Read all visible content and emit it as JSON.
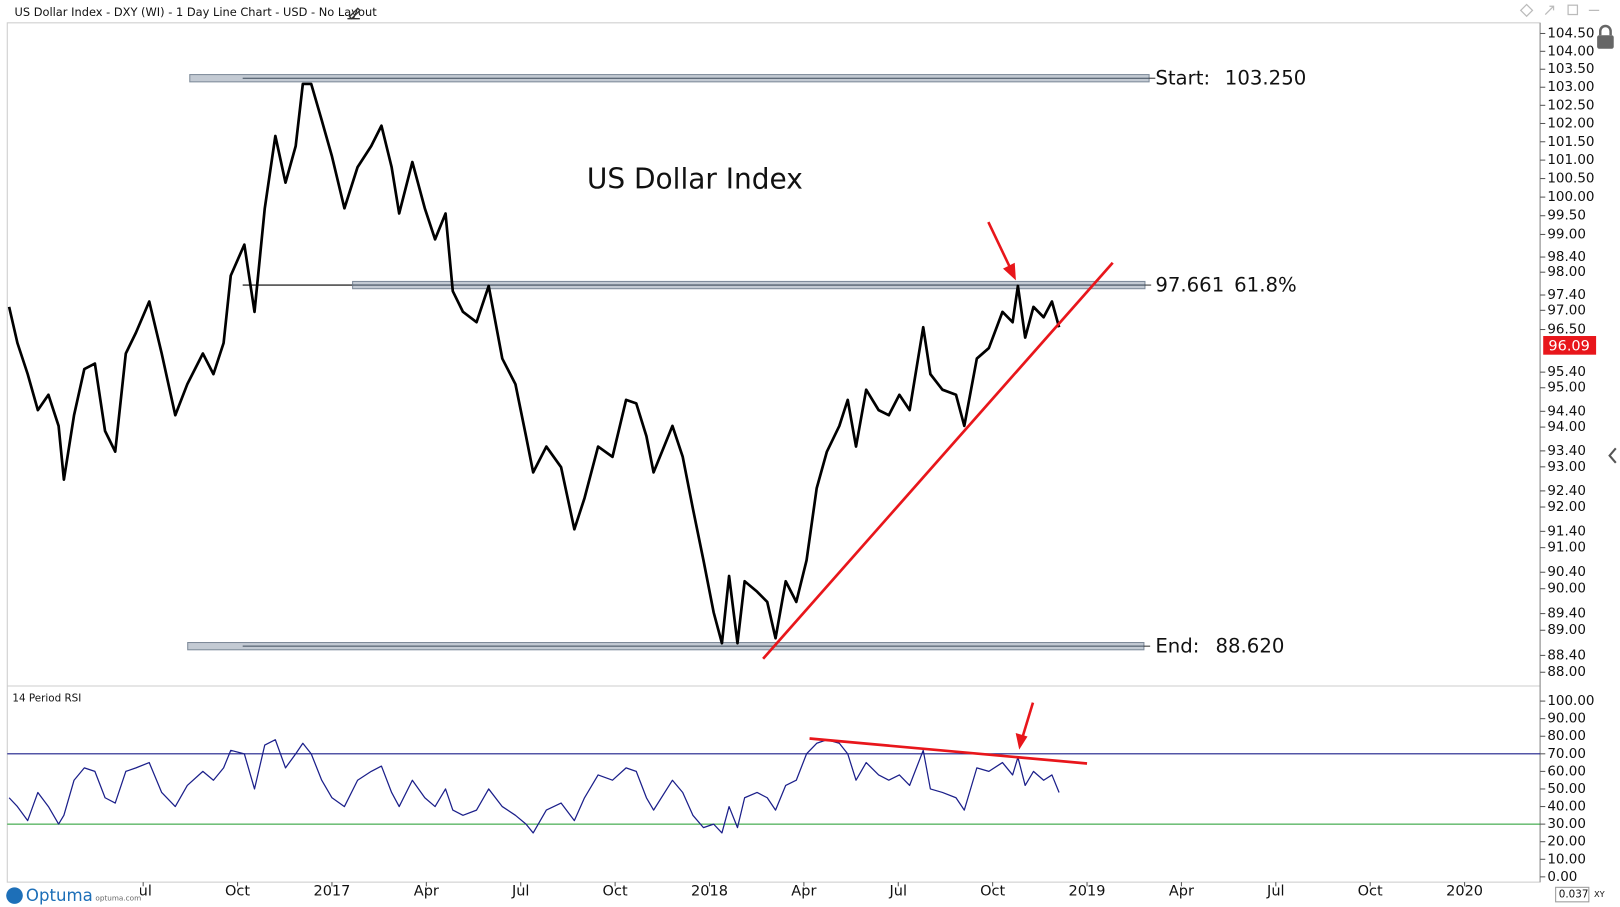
{
  "header": {
    "title": "US Dollar Index - DXY (WI) - 1 Day Line Chart - USD - No Layout"
  },
  "footer": {
    "logo": "Optuma",
    "site": "optuma.com",
    "zoom": "0.037",
    "mode": "XY"
  },
  "chart_data": [
    {
      "type": "line",
      "title": "US Dollar Index",
      "log": true,
      "xlim": [
        2016.14,
        2020.2
      ],
      "ylim": [
        87.7,
        104.8
      ],
      "yticks": [
        {
          "value": 88,
          "label": "88.00"
        },
        {
          "value": 88.4,
          "label": "88.40"
        },
        {
          "value": 89,
          "label": "89.00"
        },
        {
          "value": 89.4,
          "label": "89.40"
        },
        {
          "value": 90,
          "label": "90.00"
        },
        {
          "value": 90.4,
          "label": "90.40"
        },
        {
          "value": 91,
          "label": "91.00"
        },
        {
          "value": 91.4,
          "label": "91.40"
        },
        {
          "value": 92,
          "label": "92.00"
        },
        {
          "value": 92.4,
          "label": "92.40"
        },
        {
          "value": 93,
          "label": "93.00"
        },
        {
          "value": 93.4,
          "label": "93.40"
        },
        {
          "value": 94,
          "label": "94.00"
        },
        {
          "value": 94.4,
          "label": "94.40"
        },
        {
          "value": 95,
          "label": "95.00"
        },
        {
          "value": 95.4,
          "label": "95.40"
        },
        {
          "value": 96.5,
          "label": "96.50"
        },
        {
          "value": 97,
          "label": "97.00"
        },
        {
          "value": 97.4,
          "label": "97.40"
        },
        {
          "value": 98,
          "label": "98.00"
        },
        {
          "value": 98.4,
          "label": "98.40"
        },
        {
          "value": 99,
          "label": "99.00"
        },
        {
          "value": 99.5,
          "label": "99.50"
        },
        {
          "value": 100,
          "label": "100.00"
        },
        {
          "value": 100.5,
          "label": "100.50"
        },
        {
          "value": 101,
          "label": "101.00"
        },
        {
          "value": 101.5,
          "label": "101.50"
        },
        {
          "value": 102,
          "label": "102.00"
        },
        {
          "value": 102.5,
          "label": "102.50"
        },
        {
          "value": 103,
          "label": "103.00"
        },
        {
          "value": 103.5,
          "label": "103.50"
        },
        {
          "value": 104,
          "label": "104.00"
        },
        {
          "value": 104.5,
          "label": "104.50"
        }
      ],
      "x": [
        2016.145,
        2016.167,
        2016.194,
        2016.221,
        2016.249,
        2016.276,
        2016.29,
        2016.317,
        2016.344,
        2016.372,
        2016.399,
        2016.426,
        2016.454,
        2016.481,
        2016.516,
        2016.549,
        2016.585,
        2016.617,
        2016.658,
        2016.686,
        2016.713,
        2016.732,
        2016.768,
        2016.795,
        2016.822,
        2016.85,
        2016.877,
        2016.904,
        2016.923,
        2016.945,
        2016.973,
        2017.0,
        2017.033,
        2017.068,
        2017.104,
        2017.131,
        2017.158,
        2017.178,
        2017.213,
        2017.246,
        2017.273,
        2017.301,
        2017.32,
        2017.347,
        2017.383,
        2017.415,
        2017.451,
        2017.486,
        2017.514,
        2017.533,
        2017.568,
        2017.607,
        2017.642,
        2017.669,
        2017.705,
        2017.743,
        2017.779,
        2017.806,
        2017.833,
        2017.852,
        2017.902,
        2017.929,
        2017.956,
        2017.984,
        2018.011,
        2018.033,
        2018.052,
        2018.074,
        2018.093,
        2018.126,
        2018.153,
        2018.175,
        2018.202,
        2018.23,
        2018.257,
        2018.284,
        2018.311,
        2018.344,
        2018.366,
        2018.388,
        2018.415,
        2018.448,
        2018.475,
        2018.503,
        2018.53,
        2018.566,
        2018.585,
        2018.617,
        2018.653,
        2018.675,
        2018.708,
        2018.74,
        2018.776,
        2018.803,
        2018.817,
        2018.836,
        2018.858,
        2018.885,
        2018.907,
        2018.926
      ],
      "series": [
        {
          "name": "US Dollar Index",
          "color": "#000000",
          "values": [
            97.09,
            96.15,
            95.35,
            94.43,
            94.82,
            94.03,
            92.68,
            94.3,
            95.48,
            95.62,
            93.9,
            93.38,
            95.88,
            96.42,
            97.23,
            95.88,
            94.3,
            95.09,
            95.88,
            95.35,
            96.15,
            97.91,
            98.73,
            96.96,
            99.7,
            101.66,
            100.39,
            101.38,
            103.09,
            103.09,
            102.09,
            101.1,
            99.7,
            100.81,
            101.38,
            101.94,
            100.81,
            99.56,
            100.95,
            99.7,
            98.87,
            99.56,
            97.5,
            96.96,
            96.69,
            97.64,
            95.75,
            95.09,
            93.77,
            92.86,
            93.51,
            92.99,
            91.45,
            92.22,
            93.51,
            93.25,
            94.69,
            94.6,
            93.77,
            92.86,
            94.03,
            93.25,
            91.96,
            90.69,
            89.43,
            88.69,
            90.31,
            88.69,
            90.18,
            89.93,
            89.68,
            88.81,
            90.18,
            89.68,
            90.69,
            92.47,
            93.38,
            94.03,
            94.69,
            93.51,
            94.95,
            94.43,
            94.3,
            94.82,
            94.43,
            96.56,
            95.35,
            94.95,
            94.82,
            94.03,
            95.75,
            96.02,
            96.96,
            96.69,
            97.64,
            96.29,
            97.09,
            96.82,
            97.23,
            96.56
          ]
        }
      ],
      "levels": [
        {
          "label": "Start:",
          "value": 103.25,
          "value_label": "103.250"
        },
        {
          "value": 97.661,
          "value_label": "97.661",
          "label": "61.8%"
        },
        {
          "label": "End:",
          "value": 88.62,
          "value_label": "88.620"
        }
      ],
      "last_value": {
        "value": 96.09,
        "label": "96.09",
        "color": "#e8161b"
      },
      "trendline": {
        "x": [
          2018.142,
          2019.068
        ],
        "values": [
          88.32,
          98.25
        ],
        "color": "#e8161b"
      }
    },
    {
      "type": "line",
      "title": "14 Period RSI",
      "xlim": [
        2016.14,
        2020.2
      ],
      "ylim": [
        -3,
        108
      ],
      "xticks": [
        {
          "value": 2016.5,
          "label": "Jul"
        },
        {
          "value": 2016.75,
          "label": "Oct"
        },
        2017,
        {
          "value": 2017.25,
          "label": "Apr"
        },
        {
          "value": 2017.5,
          "label": "Jul"
        },
        {
          "value": 2017.75,
          "label": "Oct"
        },
        2018,
        {
          "value": 2018.25,
          "label": "Apr"
        },
        {
          "value": 2018.5,
          "label": "Jul"
        },
        {
          "value": 2018.75,
          "label": "Oct"
        },
        2019,
        {
          "value": 2019.25,
          "label": "Apr"
        },
        {
          "value": 2019.5,
          "label": "Jul"
        },
        {
          "value": 2019.75,
          "label": "Oct"
        },
        2020
      ],
      "yticks": [
        {
          "value": 0,
          "label": "0.00"
        },
        {
          "value": 10,
          "label": "10.00"
        },
        {
          "value": 20,
          "label": "20.00"
        },
        {
          "value": 30,
          "label": "30.00"
        },
        {
          "value": 40,
          "label": "40.00"
        },
        {
          "value": 50,
          "label": "50.00"
        },
        {
          "value": 60,
          "label": "60.00"
        },
        {
          "value": 70,
          "label": "70.00"
        },
        {
          "value": 80,
          "label": "80.00"
        },
        {
          "value": 90,
          "label": "90.00"
        },
        {
          "value": 100,
          "label": "100.00"
        }
      ],
      "x": [
        2016.145,
        2016.167,
        2016.194,
        2016.221,
        2016.249,
        2016.276,
        2016.29,
        2016.317,
        2016.344,
        2016.372,
        2016.399,
        2016.426,
        2016.454,
        2016.481,
        2016.516,
        2016.549,
        2016.585,
        2016.617,
        2016.658,
        2016.686,
        2016.713,
        2016.732,
        2016.768,
        2016.795,
        2016.822,
        2016.85,
        2016.877,
        2016.904,
        2016.923,
        2016.945,
        2016.973,
        2017.0,
        2017.033,
        2017.068,
        2017.104,
        2017.131,
        2017.158,
        2017.178,
        2017.213,
        2017.246,
        2017.273,
        2017.301,
        2017.32,
        2017.347,
        2017.383,
        2017.415,
        2017.451,
        2017.486,
        2017.514,
        2017.533,
        2017.568,
        2017.607,
        2017.642,
        2017.669,
        2017.705,
        2017.743,
        2017.779,
        2017.806,
        2017.833,
        2017.852,
        2017.902,
        2017.929,
        2017.956,
        2017.984,
        2018.011,
        2018.033,
        2018.052,
        2018.074,
        2018.093,
        2018.126,
        2018.153,
        2018.175,
        2018.202,
        2018.23,
        2018.257,
        2018.284,
        2018.311,
        2018.344,
        2018.366,
        2018.388,
        2018.415,
        2018.448,
        2018.475,
        2018.503,
        2018.53,
        2018.566,
        2018.585,
        2018.617,
        2018.653,
        2018.675,
        2018.708,
        2018.74,
        2018.776,
        2018.803,
        2018.817,
        2018.836,
        2018.858,
        2018.885,
        2018.907,
        2018.926
      ],
      "series": [
        {
          "name": "14 Period RSI",
          "color": "#1b1f8a",
          "values": [
            45,
            40,
            32,
            48,
            40,
            30,
            35,
            55,
            62,
            60,
            45,
            42,
            60,
            62,
            65,
            48,
            40,
            52,
            60,
            55,
            62,
            72,
            70,
            50,
            75,
            78,
            62,
            70,
            76,
            70,
            55,
            45,
            40,
            55,
            60,
            63,
            48,
            40,
            55,
            45,
            40,
            50,
            38,
            35,
            38,
            50,
            40,
            35,
            30,
            25,
            38,
            42,
            32,
            45,
            58,
            55,
            62,
            60,
            45,
            38,
            55,
            48,
            35,
            28,
            30,
            25,
            40,
            28,
            45,
            48,
            45,
            38,
            52,
            55,
            70,
            76,
            78,
            76,
            70,
            55,
            65,
            58,
            55,
            58,
            52,
            72,
            50,
            48,
            45,
            38,
            62,
            60,
            65,
            58,
            68,
            52,
            60,
            55,
            58,
            48
          ]
        }
      ],
      "levels": [
        {
          "value": 70,
          "color": "#1b1f8a"
        },
        {
          "value": 30,
          "color": "#1e9a2a"
        }
      ],
      "trendline": {
        "x": [
          2018.265,
          2019.0
        ],
        "values": [
          78.7,
          64.5
        ],
        "color": "#e8161b"
      }
    }
  ]
}
